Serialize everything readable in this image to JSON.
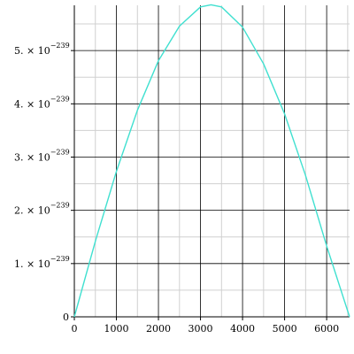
{
  "chart_data": {
    "type": "line",
    "title": "",
    "xlabel": "",
    "ylabel": "",
    "xlim": [
      0,
      6545
    ],
    "ylim": [
      0,
      5.85
    ],
    "y_exponent_note": "y values are in units of 10^-239",
    "x_ticks": [
      {
        "value": 0,
        "label": "0"
      },
      {
        "value": 1000,
        "label": "1000"
      },
      {
        "value": 2000,
        "label": "2000"
      },
      {
        "value": 3000,
        "label": "3000"
      },
      {
        "value": 4000,
        "label": "4000"
      },
      {
        "value": 5000,
        "label": "5000"
      },
      {
        "value": 6000,
        "label": "6000"
      }
    ],
    "y_ticks": [
      {
        "value": 0,
        "label": "0",
        "mantissa": "",
        "times_ten": "",
        "exponent": ""
      },
      {
        "value": 1,
        "label": "",
        "mantissa": "1.",
        "times_ten": "× 10",
        "exponent": "−239"
      },
      {
        "value": 2,
        "label": "",
        "mantissa": "2.",
        "times_ten": "× 10",
        "exponent": "−239"
      },
      {
        "value": 3,
        "label": "",
        "mantissa": "3.",
        "times_ten": "× 10",
        "exponent": "−239"
      },
      {
        "value": 4,
        "label": "",
        "mantissa": "4.",
        "times_ten": "× 10",
        "exponent": "−239"
      },
      {
        "value": 5,
        "label": "",
        "mantissa": "5.",
        "times_ten": "× 10",
        "exponent": "−239"
      }
    ],
    "grid": true,
    "minor_grid": true,
    "series": [
      {
        "color": "#40e0d0",
        "x": [
          0,
          500,
          1000,
          1500,
          2000,
          2500,
          3000,
          3250,
          3500,
          4000,
          4500,
          5000,
          5500,
          6000,
          6545
        ],
        "y": [
          0,
          1.42,
          2.73,
          3.88,
          4.81,
          5.46,
          5.82,
          5.86,
          5.82,
          5.44,
          4.75,
          3.81,
          2.65,
          1.33,
          0
        ]
      }
    ]
  }
}
